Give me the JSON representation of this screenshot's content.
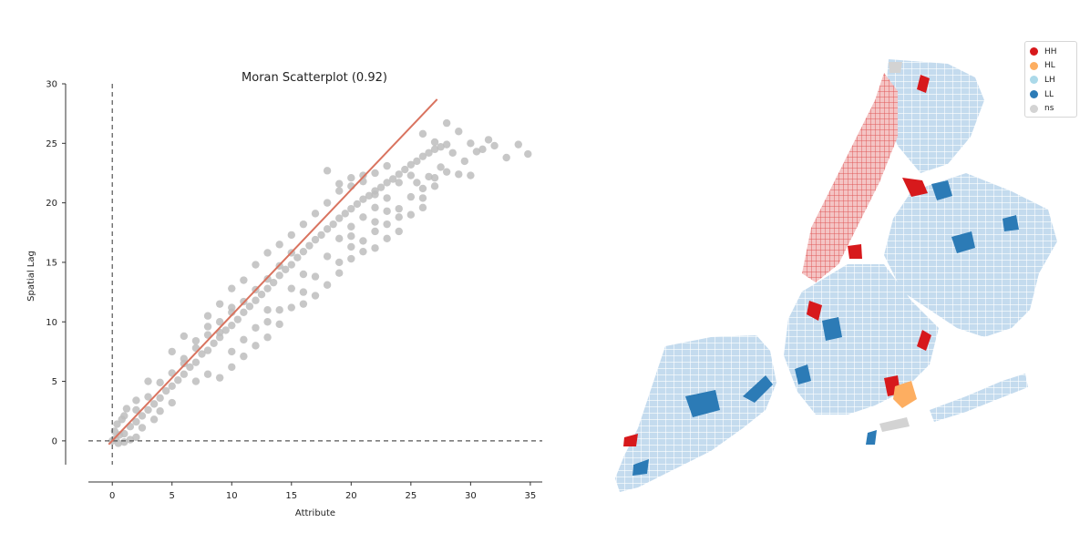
{
  "chart_data": [
    {
      "type": "scatter",
      "title": "Moran Scatterplot (0.92)",
      "xlabel": "Attribute",
      "ylabel": "Spatial Lag",
      "xlim": [
        -2,
        36
      ],
      "ylim": [
        -2,
        30
      ],
      "xticks": [
        0,
        5,
        10,
        15,
        20,
        25,
        30,
        35
      ],
      "yticks": [
        0,
        5,
        10,
        15,
        20,
        25,
        30
      ],
      "grid": false,
      "point_color": "#bdbdbd",
      "reference_lines": [
        {
          "orientation": "vertical",
          "x": 0,
          "style": "dashed",
          "color": "#555555"
        },
        {
          "orientation": "horizontal",
          "y": 0,
          "style": "dashed",
          "color": "#555555"
        }
      ],
      "fit_line": {
        "color": "#d9735f",
        "x": [
          -0.3,
          27.2
        ],
        "y": [
          -0.3,
          28.7
        ]
      },
      "series": [
        {
          "values_note": "",
          "points": [
            [
              0,
              0
            ],
            [
              0.3,
              0.2
            ],
            [
              0.6,
              0.5
            ],
            [
              1,
              0.6
            ],
            [
              1.5,
              1.2
            ],
            [
              2,
              1.6
            ],
            [
              2.5,
              2.1
            ],
            [
              3,
              2.6
            ],
            [
              3.5,
              3.1
            ],
            [
              4,
              3.6
            ],
            [
              4.5,
              4.2
            ],
            [
              5,
              4.6
            ],
            [
              5.5,
              5.1
            ],
            [
              6,
              5.6
            ],
            [
              6.5,
              6.2
            ],
            [
              7,
              6.6
            ],
            [
              7.5,
              7.3
            ],
            [
              8,
              7.6
            ],
            [
              8.5,
              8.2
            ],
            [
              9,
              8.7
            ],
            [
              9.5,
              9.3
            ],
            [
              10,
              9.7
            ],
            [
              10.5,
              10.2
            ],
            [
              11,
              10.8
            ],
            [
              11.5,
              11.3
            ],
            [
              12,
              11.8
            ],
            [
              12.5,
              12.3
            ],
            [
              13,
              12.8
            ],
            [
              13.5,
              13.3
            ],
            [
              14,
              13.9
            ],
            [
              14.5,
              14.4
            ],
            [
              15,
              14.8
            ],
            [
              15.5,
              15.4
            ],
            [
              16,
              15.9
            ],
            [
              16.5,
              16.4
            ],
            [
              17,
              16.9
            ],
            [
              17.5,
              17.3
            ],
            [
              18,
              17.8
            ],
            [
              18.5,
              18.2
            ],
            [
              19,
              18.7
            ],
            [
              19.5,
              19.1
            ],
            [
              20,
              19.5
            ],
            [
              20.5,
              19.9
            ],
            [
              21,
              20.3
            ],
            [
              21.5,
              20.6
            ],
            [
              22,
              21
            ],
            [
              22.5,
              21.3
            ],
            [
              23,
              21.7
            ],
            [
              23.5,
              22
            ],
            [
              24,
              22.4
            ],
            [
              24.5,
              22.8
            ],
            [
              25,
              23.2
            ],
            [
              25.5,
              23.5
            ],
            [
              26,
              23.9
            ],
            [
              26.5,
              24.2
            ],
            [
              27,
              24.5
            ],
            [
              27.5,
              24.7
            ],
            [
              28,
              24.9
            ],
            [
              3,
              5
            ],
            [
              5,
              7.5
            ],
            [
              8,
              10.5
            ],
            [
              10,
              12.8
            ],
            [
              12,
              14.8
            ],
            [
              14,
              16.5
            ],
            [
              16,
              18.2
            ],
            [
              18,
              20
            ],
            [
              20,
              21.4
            ],
            [
              22,
              22.5
            ],
            [
              4,
              2.5
            ],
            [
              7,
              5
            ],
            [
              10,
              7.5
            ],
            [
              13,
              10
            ],
            [
              16,
              12.5
            ],
            [
              19,
              15
            ],
            [
              21,
              16.8
            ],
            [
              23,
              18.2
            ],
            [
              24,
              19.5
            ],
            [
              25,
              20.5
            ],
            [
              2,
              3.4
            ],
            [
              6,
              8.8
            ],
            [
              9,
              11.5
            ],
            [
              11,
              13.5
            ],
            [
              13,
              15.8
            ],
            [
              15,
              17.3
            ],
            [
              17,
              19.1
            ],
            [
              19,
              21
            ],
            [
              21,
              22.3
            ],
            [
              23,
              23.1
            ],
            [
              5,
              3.2
            ],
            [
              8,
              5.6
            ],
            [
              11,
              8.5
            ],
            [
              14,
              11
            ],
            [
              17,
              13.8
            ],
            [
              20,
              16.3
            ],
            [
              22,
              17.6
            ],
            [
              24,
              18.8
            ],
            [
              26,
              20.4
            ],
            [
              27,
              21.4
            ],
            [
              26,
              25.8
            ],
            [
              27,
              25.1
            ],
            [
              28,
              26.7
            ],
            [
              29,
              26
            ],
            [
              30,
              25
            ],
            [
              31,
              24.5
            ],
            [
              32,
              24.8
            ],
            [
              33,
              23.8
            ],
            [
              34,
              24.9
            ],
            [
              34.8,
              24.1
            ],
            [
              29.5,
              23.5
            ],
            [
              30.5,
              24.3
            ],
            [
              28.5,
              24.2
            ],
            [
              31.5,
              25.3
            ],
            [
              27.5,
              23
            ],
            [
              29,
              22.4
            ],
            [
              30,
              22.3
            ],
            [
              26.5,
              22.2
            ],
            [
              25.5,
              21.7
            ],
            [
              28,
              22.6
            ],
            [
              12,
              9.5
            ],
            [
              13,
              11
            ],
            [
              15,
              12.8
            ],
            [
              16,
              14
            ],
            [
              18,
              15.5
            ],
            [
              19,
              17
            ],
            [
              20,
              18
            ],
            [
              21,
              18.8
            ],
            [
              22,
              19.6
            ],
            [
              23,
              20.4
            ],
            [
              6,
              6.5
            ],
            [
              7,
              7.8
            ],
            [
              8,
              8.9
            ],
            [
              9,
              10
            ],
            [
              10,
              10.8
            ],
            [
              11,
              11.7
            ],
            [
              12,
              12.7
            ],
            [
              13,
              13.6
            ],
            [
              14,
              14.7
            ],
            [
              15,
              15.8
            ],
            [
              1,
              2.1
            ],
            [
              2,
              2.6
            ],
            [
              3,
              3.7
            ],
            [
              4,
              4.9
            ],
            [
              5,
              5.7
            ],
            [
              6,
              6.9
            ],
            [
              7,
              8.4
            ],
            [
              8,
              9.6
            ],
            [
              9,
              9.1
            ],
            [
              10,
              11.2
            ],
            [
              18,
              22.7
            ],
            [
              19,
              21.6
            ],
            [
              20,
              22.1
            ],
            [
              21,
              21.8
            ],
            [
              22,
              20.7
            ],
            [
              24,
              21.7
            ],
            [
              25,
              22.3
            ],
            [
              23,
              19.3
            ],
            [
              20,
              17.2
            ],
            [
              22,
              18.4
            ],
            [
              16,
              11.5
            ],
            [
              17,
              12.2
            ],
            [
              18,
              13.1
            ],
            [
              15,
              11.2
            ],
            [
              14,
              9.8
            ],
            [
              13,
              8.7
            ],
            [
              12,
              8
            ],
            [
              11,
              7.1
            ],
            [
              10,
              6.2
            ],
            [
              9,
              5.3
            ],
            [
              19,
              14.1
            ],
            [
              20,
              15.3
            ],
            [
              21,
              15.9
            ],
            [
              22,
              16.2
            ],
            [
              23,
              17
            ],
            [
              24,
              17.6
            ],
            [
              25,
              19
            ],
            [
              26,
              19.6
            ],
            [
              26,
              21.2
            ],
            [
              27,
              22.1
            ],
            [
              0.5,
              -0.2
            ],
            [
              1,
              -0.1
            ],
            [
              1.5,
              0.1
            ],
            [
              2,
              0.3
            ],
            [
              0.2,
              0.8
            ],
            [
              0.4,
              1.4
            ],
            [
              0.8,
              1.8
            ],
            [
              1.2,
              2.7
            ],
            [
              2.5,
              1.1
            ],
            [
              3.5,
              1.8
            ]
          ]
        }
      ]
    },
    {
      "type": "choropleth",
      "legend": [
        {
          "label": "HH",
          "color": "#d7191c"
        },
        {
          "label": "HL",
          "color": "#fdae61"
        },
        {
          "label": "LH",
          "color": "#abd9e9"
        },
        {
          "label": "LL",
          "color": "#2c7bb6"
        },
        {
          "label": "ns",
          "color": "#d3d3d3"
        }
      ],
      "legend_position": "top-right"
    }
  ]
}
